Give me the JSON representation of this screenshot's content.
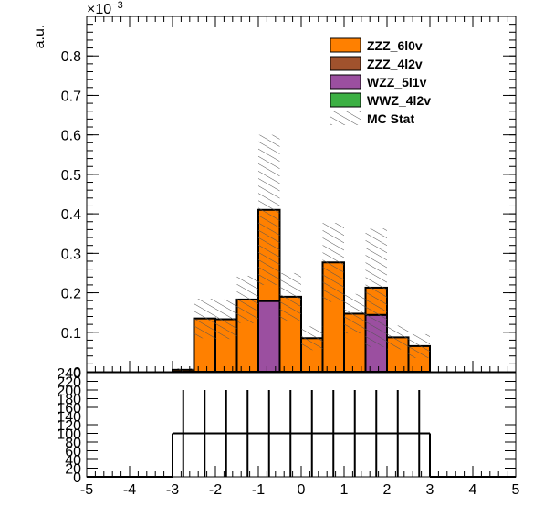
{
  "chart_data": [
    {
      "type": "stacked_histogram",
      "y_label": "a.u.",
      "y_multiplier_base": "×10",
      "y_multiplier_exponent": "−3",
      "bins": [
        -5,
        -4.5,
        -4,
        -3.5,
        -3,
        -2.5,
        -2,
        -1.5,
        -1,
        -0.5,
        0,
        0.5,
        1,
        1.5,
        2,
        2.5,
        3,
        3.5,
        4,
        4.5,
        5
      ],
      "xlim": [
        -5,
        5
      ],
      "ylim": [
        0,
        0.9
      ],
      "yticks": [
        0,
        0.1,
        0.2,
        0.3,
        0.4,
        0.5,
        0.6,
        0.7,
        0.8
      ],
      "series": [
        {
          "name": "ZZZ_6l0v",
          "color": "#ff8000",
          "values": [
            0,
            0,
            0,
            0,
            0.005,
            0.135,
            0.133,
            0.183,
            0.231,
            0.19,
            0.085,
            0.277,
            0.147,
            0.069,
            0.087,
            0.065,
            0,
            0,
            0,
            0
          ]
        },
        {
          "name": "ZZZ_4l2v",
          "color": "#a0522d",
          "values": [
            0,
            0,
            0,
            0,
            0,
            0,
            0,
            0,
            0,
            0,
            0,
            0,
            0,
            0,
            0,
            0,
            0,
            0,
            0,
            0
          ]
        },
        {
          "name": "WZZ_5l1v",
          "color": "#9b4fa0",
          "values": [
            0,
            0,
            0,
            0,
            0,
            0,
            0,
            0,
            0.179,
            0,
            0,
            0,
            0,
            0.144,
            0,
            0,
            0,
            0,
            0,
            0
          ]
        },
        {
          "name": "WWZ_4l2v",
          "color": "#3cb043",
          "values": [
            0,
            0,
            0,
            0,
            0,
            0,
            0,
            0,
            0,
            0,
            0,
            0,
            0,
            0,
            0,
            0,
            0,
            0,
            0,
            0
          ]
        }
      ],
      "stat_label": "MC Stat",
      "stat_error": [
        0,
        0,
        0,
        0,
        0.004,
        0.05,
        0.05,
        0.06,
        0.19,
        0.06,
        0.03,
        0.1,
        0.05,
        0.15,
        0.03,
        0.03,
        0,
        0,
        0,
        0
      ]
    },
    {
      "type": "ratio_histogram",
      "bins": [
        -5,
        -4.5,
        -4,
        -3.5,
        -3,
        -2.5,
        -2,
        -1.5,
        -1,
        -0.5,
        0,
        0.5,
        1,
        1.5,
        2,
        2.5,
        3,
        3.5,
        4,
        4.5,
        5
      ],
      "values": [
        0,
        0,
        0,
        0,
        100,
        100,
        100,
        100,
        100,
        100,
        100,
        100,
        100,
        100,
        100,
        100,
        0,
        0,
        0,
        0
      ],
      "errors": [
        0,
        0,
        0,
        0,
        100,
        100,
        100,
        100,
        100,
        100,
        100,
        100,
        100,
        100,
        100,
        100,
        0,
        0,
        0,
        0
      ],
      "xlim": [
        -5,
        5
      ],
      "xticks": [
        -5,
        -4,
        -3,
        -2,
        -1,
        0,
        1,
        2,
        3,
        4,
        5
      ],
      "ylim": [
        0,
        240
      ],
      "yticks": [
        0,
        20,
        40,
        60,
        80,
        100,
        120,
        140,
        160,
        180,
        200,
        220,
        240
      ]
    }
  ]
}
